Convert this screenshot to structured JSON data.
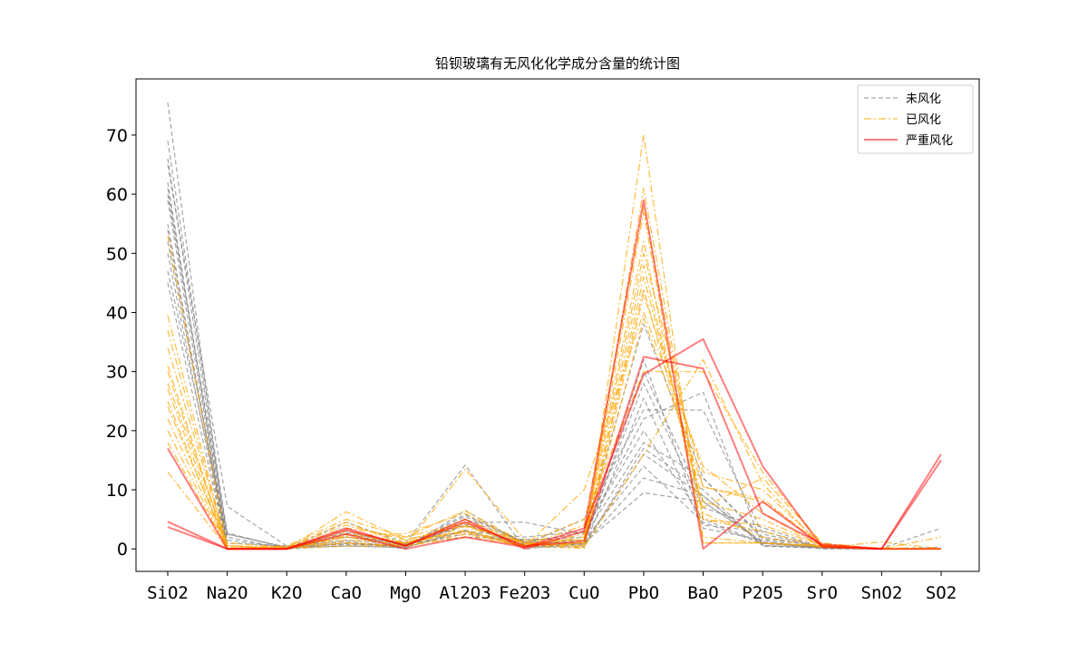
{
  "chart_data": {
    "type": "line",
    "title": "铅钡玻璃有无风化化学成分含量的统计图",
    "xlabel": "",
    "ylabel": "",
    "categories": [
      "SiO2",
      "Na2O",
      "K2O",
      "CaO",
      "MgO",
      "Al2O3",
      "Fe2O3",
      "CuO",
      "PbO",
      "BaO",
      "P2O5",
      "SrO",
      "SnO2",
      "SO2"
    ],
    "yticks": [
      0,
      10,
      20,
      30,
      40,
      50,
      60,
      70
    ],
    "ylim": [
      -3.8,
      79.5
    ],
    "legend": {
      "position": "top-right"
    },
    "styles": {
      "未风化": {
        "color": "#808080",
        "dash": "5,3",
        "opacity": 0.7,
        "width": 1.2
      },
      "已风化": {
        "color": "#FFA500",
        "dash": "8,3,2,3",
        "opacity": 0.75,
        "width": 1.2
      },
      "严重风化": {
        "color": "#FF0000",
        "dash": "",
        "opacity": 0.5,
        "width": 2
      }
    },
    "legend_entries": [
      "未风化",
      "已风化",
      "严重风化"
    ],
    "series": [
      {
        "name": "未风化",
        "values": [
          75.5,
          0,
          0.2,
          0.5,
          0.2,
          3.2,
          0.4,
          0.8,
          12,
          9,
          0.6,
          0.2,
          0,
          0.3
        ]
      },
      {
        "name": "未风化",
        "values": [
          69,
          2.5,
          0.3,
          1.5,
          0.7,
          5,
          1.2,
          0.8,
          16,
          9,
          1,
          0.3,
          0,
          0
        ]
      },
      {
        "name": "未风化",
        "values": [
          65,
          7.2,
          0.5,
          2,
          0.8,
          2.5,
          1.5,
          2,
          18,
          12,
          2,
          0.4,
          0,
          0
        ]
      },
      {
        "name": "未风化",
        "values": [
          62,
          0,
          0,
          4.5,
          1,
          14.2,
          0,
          1,
          9.5,
          8,
          1.2,
          0.2,
          0,
          0
        ]
      },
      {
        "name": "未风化",
        "values": [
          60,
          2.7,
          0.1,
          3,
          0.5,
          4.5,
          4.5,
          2.5,
          22,
          26.5,
          0.5,
          0.1,
          0,
          0
        ]
      },
      {
        "name": "未风化",
        "values": [
          55,
          0,
          0.3,
          1.3,
          0,
          6.5,
          0.7,
          5,
          23.5,
          23.5,
          2.5,
          0.3,
          0.1,
          3.5
        ]
      },
      {
        "name": "未风化",
        "values": [
          52,
          1.5,
          0.2,
          1,
          0.4,
          5.5,
          1.2,
          1.1,
          32,
          4,
          3,
          0.2,
          0,
          0
        ]
      },
      {
        "name": "未风化",
        "values": [
          50,
          0,
          0,
          0.5,
          0.3,
          3,
          0.3,
          0.3,
          25.5,
          3.5,
          1.5,
          0,
          0,
          0
        ]
      },
      {
        "name": "未风化",
        "values": [
          45,
          0,
          0,
          1,
          0.7,
          4,
          0.8,
          0.8,
          30,
          8,
          1,
          0.3,
          0,
          0
        ]
      },
      {
        "name": "未风化",
        "values": [
          66,
          2,
          0,
          2,
          1,
          3,
          2,
          3,
          20,
          5,
          1,
          0.5,
          0,
          0
        ]
      },
      {
        "name": "未风化",
        "values": [
          61,
          1,
          0.5,
          0.7,
          0.6,
          4,
          0.4,
          0.5,
          17,
          10,
          0.5,
          0.2,
          0,
          0
        ]
      },
      {
        "name": "未风化",
        "values": [
          54,
          0,
          0,
          2.5,
          0.6,
          5.8,
          1.1,
          2.8,
          38,
          12,
          1.7,
          0.4,
          0,
          0
        ]
      },
      {
        "name": "未风化",
        "values": [
          47,
          2.5,
          0.3,
          2.7,
          0.9,
          2,
          1.6,
          1.5,
          14,
          4.5,
          0.9,
          0.2,
          0,
          0
        ]
      },
      {
        "name": "未风化",
        "values": [
          59,
          0,
          0.1,
          0.9,
          0.4,
          4.2,
          0.6,
          1.6,
          28,
          7,
          3.6,
          0.3,
          0,
          0
        ]
      },
      {
        "name": "已风化",
        "values": [
          53,
          0.5,
          0.2,
          4,
          1.5,
          4,
          0.9,
          1,
          39,
          10.5,
          8.5,
          0.5,
          0,
          0
        ]
      },
      {
        "name": "已风化",
        "values": [
          37,
          0,
          0.5,
          5,
          2,
          6.5,
          1,
          1.5,
          44,
          7,
          12,
          1,
          0,
          0
        ]
      },
      {
        "name": "已风化",
        "values": [
          34,
          0.5,
          0,
          6.3,
          1.5,
          4,
          1,
          0.5,
          46,
          8,
          5,
          0.5,
          0,
          0
        ]
      },
      {
        "name": "已风化",
        "values": [
          30,
          0,
          0,
          2.5,
          1,
          3.2,
          0.6,
          4,
          58,
          5,
          4,
          0.6,
          0,
          0
        ]
      },
      {
        "name": "已风化",
        "values": [
          28,
          1,
          0.2,
          2,
          0.5,
          2,
          0.5,
          1,
          61,
          5,
          3,
          0.3,
          0,
          0
        ]
      },
      {
        "name": "已风化",
        "values": [
          25,
          0.1,
          0.1,
          1,
          0.5,
          2.5,
          0.5,
          0.1,
          70,
          1,
          1,
          0.5,
          0,
          0
        ]
      },
      {
        "name": "已风化",
        "values": [
          22,
          0.2,
          0.1,
          0.5,
          0.5,
          13.5,
          1.5,
          1.5,
          57,
          1,
          1,
          0.3,
          0.2,
          0
        ]
      },
      {
        "name": "已风化",
        "values": [
          20,
          0,
          0,
          3,
          1,
          4.5,
          0.4,
          10,
          40,
          14,
          6,
          0.4,
          0,
          0
        ]
      },
      {
        "name": "已风化",
        "values": [
          18,
          0.1,
          0.2,
          2,
          1.2,
          3,
          0.5,
          2,
          50,
          10.5,
          8,
          0.7,
          0,
          0
        ]
      },
      {
        "name": "已风化",
        "values": [
          13,
          0.1,
          0.1,
          3.5,
          2,
          4.5,
          1,
          5,
          30,
          30,
          13,
          0.8,
          0,
          2
        ]
      },
      {
        "name": "已风化",
        "values": [
          39.5,
          0,
          0.5,
          1,
          0.5,
          3.8,
          0.6,
          1,
          48,
          6,
          2,
          0.3,
          0,
          0
        ]
      },
      {
        "name": "已风化",
        "values": [
          27,
          0,
          0.3,
          4.5,
          0.7,
          5,
          1,
          0.5,
          43,
          13,
          10,
          0.6,
          0,
          0
        ]
      },
      {
        "name": "已风化",
        "values": [
          24,
          0.6,
          0,
          2.2,
          2.6,
          6,
          0.8,
          0.3,
          16,
          32,
          11,
          0.2,
          1.2,
          0
        ]
      },
      {
        "name": "已风化",
        "values": [
          31,
          0,
          0.2,
          1.5,
          1,
          2.8,
          0.4,
          2.5,
          52,
          2,
          1,
          0.5,
          0,
          0
        ]
      },
      {
        "name": "严重风化",
        "values": [
          17,
          0,
          0,
          3.5,
          0.5,
          5,
          0,
          3,
          59,
          0,
          8,
          0.5,
          0,
          15
        ]
      },
      {
        "name": "严重风化",
        "values": [
          4.6,
          0,
          0,
          3.2,
          0.6,
          4.5,
          0.5,
          1.3,
          32.5,
          30.5,
          6,
          0.8,
          0,
          16
        ]
      },
      {
        "name": "严重风化",
        "values": [
          3.7,
          0,
          0,
          2.5,
          0,
          2,
          0.3,
          3.5,
          29.5,
          35.5,
          14,
          0.3,
          0,
          0
        ]
      }
    ]
  }
}
